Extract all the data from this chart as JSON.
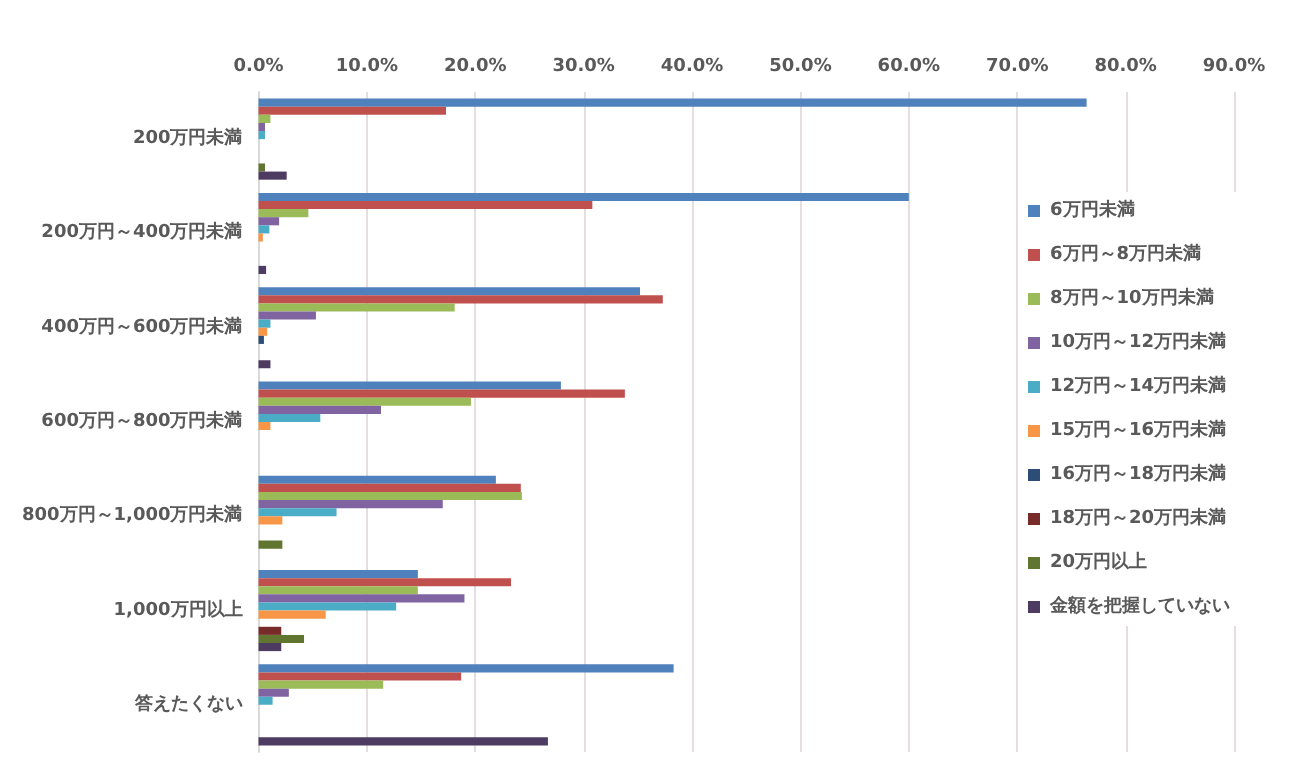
{
  "chart_data": {
    "type": "bar",
    "orientation": "horizontal",
    "categories": [
      "200万円未満",
      "200万円～400万円未満",
      "400万円～600万円未満",
      "600万円～800万円未満",
      "800万円～1,000万円未満",
      "1,000万円以上",
      "答えたくない"
    ],
    "series": [
      {
        "name": "6万円未満",
        "color": "#4f81bd",
        "values": [
          76.4,
          60.0,
          35.2,
          27.9,
          21.9,
          14.7,
          38.3
        ]
      },
      {
        "name": "6万円～8万円未満",
        "color": "#c0504d",
        "values": [
          17.3,
          30.8,
          37.3,
          33.8,
          24.2,
          23.3,
          18.7
        ]
      },
      {
        "name": "8万円～10万円未満",
        "color": "#9bbb59",
        "values": [
          1.1,
          4.6,
          18.1,
          19.6,
          24.3,
          14.7,
          11.5
        ]
      },
      {
        "name": "10万円～12万円未満",
        "color": "#8064a2",
        "values": [
          0.6,
          1.9,
          5.3,
          11.3,
          17.0,
          19.0,
          2.8
        ]
      },
      {
        "name": "12万円～14万円未満",
        "color": "#4bacc6",
        "values": [
          0.6,
          1.0,
          1.1,
          5.7,
          7.2,
          12.7,
          1.3
        ]
      },
      {
        "name": "15万円～16万円未満",
        "color": "#f79646",
        "values": [
          0,
          0.4,
          0.8,
          1.1,
          2.2,
          6.2,
          0
        ]
      },
      {
        "name": "16万円～18万円未満",
        "color": "#2c4d75",
        "values": [
          0,
          0,
          0.5,
          0,
          0,
          0,
          0
        ]
      },
      {
        "name": "18万円～20万円未満",
        "color": "#772c2a",
        "values": [
          0,
          0,
          0,
          0,
          0,
          2.1,
          0
        ]
      },
      {
        "name": "20万円以上",
        "color": "#5f7530",
        "values": [
          0.6,
          0,
          0,
          0,
          2.2,
          4.2,
          0
        ]
      },
      {
        "name": "金額を把握していない",
        "color": "#4d3b62",
        "values": [
          2.6,
          0.7,
          1.1,
          0,
          0,
          2.1,
          26.7
        ]
      }
    ],
    "xlim": [
      0,
      90
    ],
    "xticks": [
      {
        "value": 0,
        "label": "0.0%"
      },
      {
        "value": 10,
        "label": "10.0%"
      },
      {
        "value": 20,
        "label": "20.0%"
      },
      {
        "value": 30,
        "label": "30.0%"
      },
      {
        "value": 40,
        "label": "40.0%"
      },
      {
        "value": 50,
        "label": "50.0%"
      },
      {
        "value": 60,
        "label": "60.0%"
      },
      {
        "value": 70,
        "label": "70.0%"
      },
      {
        "value": 80,
        "label": "80.0%"
      },
      {
        "value": 90,
        "label": "90.0%"
      }
    ],
    "grid": "x",
    "legend": "right"
  }
}
